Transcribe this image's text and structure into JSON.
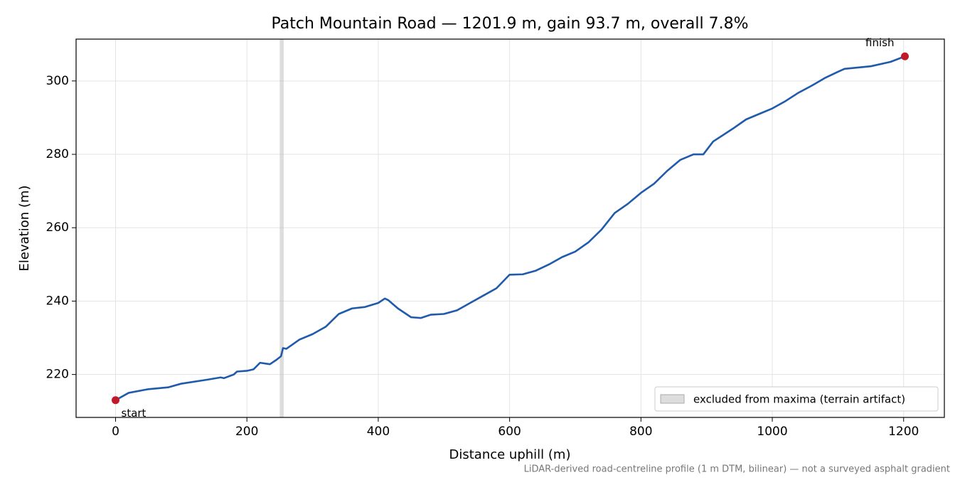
{
  "chart_data": {
    "type": "line",
    "title": "Patch Mountain Road — 1201.9 m, gain 93.7 m, overall 7.8%",
    "xlabel": "Distance uphill (m)",
    "ylabel": "Elevation (m)",
    "note": "LiDAR-derived road-centreline profile (1 m DTM, bilinear) — not a surveyed asphalt gradient",
    "x": [
      0,
      20,
      50,
      80,
      100,
      140,
      160,
      165,
      180,
      185,
      200,
      210,
      220,
      235,
      245,
      252,
      255,
      260,
      280,
      300,
      320,
      340,
      360,
      380,
      400,
      410,
      415,
      430,
      450,
      465,
      480,
      500,
      520,
      540,
      560,
      580,
      600,
      620,
      640,
      660,
      680,
      700,
      720,
      740,
      760,
      780,
      800,
      820,
      840,
      860,
      880,
      895,
      910,
      940,
      960,
      980,
      1000,
      1020,
      1040,
      1060,
      1080,
      1100,
      1110,
      1150,
      1180,
      1201.9
    ],
    "values": [
      213,
      215,
      216,
      216.5,
      217.5,
      218.6,
      219.2,
      219,
      220,
      220.8,
      221,
      221.4,
      223.2,
      222.8,
      224,
      225,
      227.2,
      227,
      229.5,
      231,
      233,
      236.5,
      238,
      238.4,
      239.5,
      240.7,
      240.3,
      238,
      235.6,
      235.4,
      236.3,
      236.5,
      237.5,
      239.5,
      241.5,
      243.5,
      247.2,
      247.3,
      248.3,
      250,
      252,
      253.5,
      256,
      259.5,
      264,
      266.5,
      269.5,
      272,
      275.5,
      278.5,
      280,
      280,
      283.5,
      287,
      289.5,
      291,
      292.5,
      294.5,
      296.8,
      298.7,
      300.8,
      302.5,
      303.3,
      304,
      305.2,
      306.7
    ],
    "color": "#1f5aab",
    "shaded_region": {
      "label": "excluded from maxima (terrain artifact)",
      "x": [
        250,
        256
      ],
      "color": "#bbbbbb"
    },
    "annotations": [
      {
        "text": "start",
        "x": 0,
        "y": 213,
        "color": "#c0192a"
      },
      {
        "text": "finish",
        "x": 1201.9,
        "y": 306.7,
        "color": "#c0192a"
      }
    ],
    "xlim": [
      -60.1,
      1262
    ],
    "ylim": [
      208.3,
      311.4
    ],
    "xticks": [
      0,
      200,
      400,
      600,
      800,
      1000,
      1200
    ],
    "yticks": [
      220,
      240,
      260,
      280,
      300
    ],
    "grid": true,
    "legend": "lower right"
  }
}
